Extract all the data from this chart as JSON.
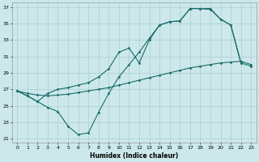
{
  "xlabel": "Humidex (Indice chaleur)",
  "background_color": "#cce8ea",
  "grid_color": "#aacdd0",
  "line_color": "#1a6b6b",
  "xlim": [
    -0.5,
    23.5
  ],
  "ylim": [
    20.5,
    37.5
  ],
  "yticks": [
    21,
    23,
    25,
    27,
    29,
    31,
    33,
    35,
    37
  ],
  "xticks": [
    0,
    1,
    2,
    3,
    4,
    5,
    6,
    7,
    8,
    9,
    10,
    11,
    12,
    13,
    14,
    15,
    16,
    17,
    18,
    19,
    20,
    21,
    22,
    23
  ],
  "series_zigzag_x": [
    0,
    1,
    2,
    3,
    4,
    5,
    6,
    7,
    8,
    9,
    10,
    11,
    12,
    13,
    14,
    15,
    16,
    17,
    18,
    19,
    20,
    21,
    22
  ],
  "series_zigzag_y": [
    26.8,
    26.2,
    25.5,
    24.8,
    24.3,
    22.5,
    21.5,
    21.7,
    24.2,
    26.5,
    28.5,
    30.0,
    31.5,
    33.2,
    34.8,
    35.2,
    35.3,
    36.8,
    36.8,
    36.7,
    35.5,
    34.8,
    30.2
  ],
  "series_diagonal_x": [
    0,
    1,
    2,
    3,
    4,
    5,
    6,
    7,
    8,
    9,
    10,
    11,
    12,
    13,
    14,
    15,
    16,
    17,
    18,
    19,
    20,
    21,
    22,
    23
  ],
  "series_diagonal_y": [
    26.8,
    26.5,
    26.3,
    26.2,
    26.3,
    26.4,
    26.6,
    26.8,
    27.0,
    27.2,
    27.5,
    27.8,
    28.1,
    28.4,
    28.7,
    29.0,
    29.3,
    29.6,
    29.8,
    30.0,
    30.2,
    30.3,
    30.4,
    30.0
  ],
  "series_steep_x": [
    0,
    1,
    2,
    3,
    4,
    5,
    6,
    7,
    8,
    9,
    10,
    11,
    12,
    13,
    14,
    15,
    16,
    17,
    18,
    19,
    20,
    21,
    22,
    23
  ],
  "series_steep_y": [
    26.8,
    26.2,
    25.5,
    26.5,
    27.0,
    27.2,
    27.5,
    27.8,
    28.5,
    29.5,
    31.5,
    32.0,
    30.2,
    33.0,
    34.8,
    35.2,
    35.3,
    36.8,
    36.8,
    36.8,
    35.5,
    34.8,
    30.2,
    29.8
  ]
}
